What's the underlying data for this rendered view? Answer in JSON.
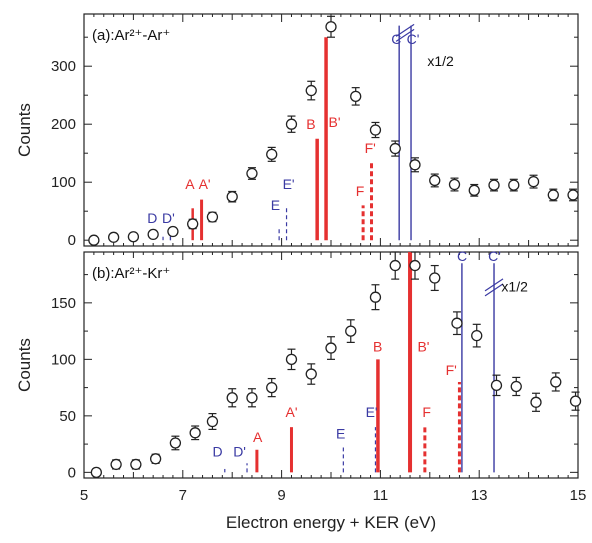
{
  "chart_data": [
    {
      "type": "scatter",
      "panel": "a",
      "title": "(a):Ar²⁺-Ar⁺",
      "xlabel": "Electron energy + KER (eV)",
      "ylabel": "Counts",
      "xlim": [
        5,
        15
      ],
      "ylim": [
        -10,
        390
      ],
      "xticks": [
        5,
        7,
        9,
        11,
        13,
        15
      ],
      "yticks": [
        0,
        100,
        200,
        300
      ],
      "break_label": "x1/2",
      "series": [
        {
          "kind": "points-with-errorbars",
          "x": [
            5.2,
            5.6,
            6.0,
            6.4,
            6.8,
            7.2,
            7.6,
            8.0,
            8.4,
            8.8,
            9.2,
            9.6,
            10.0,
            10.5,
            10.9,
            11.3,
            11.7,
            12.1,
            12.5,
            12.9,
            13.3,
            13.7,
            14.1,
            14.5,
            14.9
          ],
          "y": [
            0,
            5,
            6,
            10,
            15,
            28,
            40,
            75,
            115,
            148,
            200,
            258,
            368,
            248,
            190,
            158,
            130,
            103,
            96,
            86,
            95,
            95,
            101,
            78,
            78
          ],
          "err": [
            5,
            5,
            5,
            5,
            6,
            8,
            8,
            9,
            10,
            12,
            14,
            16,
            18,
            15,
            13,
            13,
            12,
            11,
            11,
            10,
            10,
            10,
            11,
            10,
            10
          ]
        }
      ],
      "lines": [
        {
          "label": "D",
          "x": [
            6.6,
            6.75
          ],
          "height": 6,
          "color": "#3a3aa3",
          "style": "dashed",
          "width": 1.2
        },
        {
          "label": "D'",
          "x": [
            6.75
          ],
          "height": 8,
          "color": "#3a3aa3",
          "style": "dashed",
          "width": 1.2
        },
        {
          "label": "A",
          "x": [
            7.2
          ],
          "height": 55,
          "color": "#e53030",
          "style": "solid",
          "width": 2.5
        },
        {
          "label": "A'",
          "x": [
            7.38
          ],
          "height": 70,
          "color": "#e53030",
          "style": "solid",
          "width": 3
        },
        {
          "label": "E",
          "x": [
            8.95
          ],
          "height": 20,
          "color": "#3a3aa3",
          "style": "dashed",
          "width": 1.2
        },
        {
          "label": "E'",
          "x": [
            9.1
          ],
          "height": 55,
          "color": "#3a3aa3",
          "style": "dashed",
          "width": 1.2
        },
        {
          "label": "B",
          "x": [
            9.72
          ],
          "height": 175,
          "color": "#e53030",
          "style": "solid",
          "width": 3.5
        },
        {
          "label": "B'",
          "x": [
            9.9
          ],
          "height": 350,
          "color": "#e53030",
          "style": "solid",
          "width": 3.5
        },
        {
          "label": "F",
          "x": [
            10.65
          ],
          "height": 60,
          "color": "#e53030",
          "style": "dashed",
          "width": 3
        },
        {
          "label": "F'",
          "x": [
            10.82
          ],
          "height": 135,
          "color": "#e53030",
          "style": "dashed",
          "width": 3
        },
        {
          "label": "C",
          "x": [
            11.38
          ],
          "height": 370,
          "color": "#3a3aa3",
          "style": "solid",
          "width": 1.4
        },
        {
          "label": "C'",
          "x": [
            11.62
          ],
          "height": 370,
          "color": "#3a3aa3",
          "style": "solid",
          "width": 1.4
        }
      ],
      "line_labels": [
        {
          "text": "A",
          "color": "#e53030",
          "x": 7.05,
          "y": 88
        },
        {
          "text": "A'",
          "color": "#e53030",
          "x": 7.32,
          "y": 88
        },
        {
          "text": "D",
          "color": "#3a3aa3",
          "x": 6.28,
          "y": 30
        },
        {
          "text": "D'",
          "color": "#3a3aa3",
          "x": 6.58,
          "y": 30
        },
        {
          "text": "E",
          "color": "#3a3aa3",
          "x": 8.78,
          "y": 52
        },
        {
          "text": "E'",
          "color": "#3a3aa3",
          "x": 9.02,
          "y": 88
        },
        {
          "text": "B",
          "color": "#e53030",
          "x": 9.5,
          "y": 192
        },
        {
          "text": "B'",
          "color": "#e53030",
          "x": 9.95,
          "y": 195
        },
        {
          "text": "F",
          "color": "#e53030",
          "x": 10.5,
          "y": 76
        },
        {
          "text": "F'",
          "color": "#e53030",
          "x": 10.68,
          "y": 150
        },
        {
          "text": "C",
          "color": "#3a3aa3",
          "x": 11.22,
          "y": 338
        },
        {
          "text": "C'",
          "color": "#3a3aa3",
          "x": 11.53,
          "y": 338
        }
      ]
    },
    {
      "type": "scatter",
      "panel": "b",
      "title": "(b):Ar²⁺-Kr⁺",
      "xlabel": "Electron energy + KER (eV)",
      "ylabel": "Counts",
      "xlim": [
        5,
        15
      ],
      "ylim": [
        -5,
        195
      ],
      "xticks": [
        5,
        7,
        9,
        11,
        13,
        15
      ],
      "yticks": [
        0,
        50,
        100,
        150
      ],
      "break_label": "x1/2",
      "series": [
        {
          "kind": "points-with-errorbars",
          "x": [
            5.25,
            5.65,
            6.05,
            6.45,
            6.85,
            7.25,
            7.6,
            8.0,
            8.4,
            8.8,
            9.2,
            9.6,
            10.0,
            10.4,
            10.9,
            11.3,
            11.7,
            12.1,
            12.55,
            12.95,
            13.35,
            13.75,
            14.15,
            14.55,
            14.95
          ],
          "y": [
            0,
            7,
            7,
            12,
            26,
            35,
            45,
            66,
            66,
            75,
            100,
            87,
            110,
            125,
            155,
            183,
            183,
            172,
            132,
            121,
            77,
            76,
            62,
            80,
            63
          ],
          "err": [
            3,
            4,
            4,
            4,
            6,
            6,
            7,
            8,
            8,
            8,
            9,
            9,
            10,
            10,
            11,
            12,
            12,
            11,
            10,
            10,
            9,
            8,
            8,
            8,
            8
          ]
        }
      ],
      "lines": [
        {
          "label": "D",
          "x": [
            7.85
          ],
          "height": 3,
          "color": "#3a3aa3",
          "style": "dashed",
          "width": 1.2
        },
        {
          "label": "D'",
          "x": [
            8.3
          ],
          "height": 8,
          "color": "#3a3aa3",
          "style": "dashed",
          "width": 1.2
        },
        {
          "label": "A",
          "x": [
            8.5
          ],
          "height": 20,
          "color": "#e53030",
          "style": "solid",
          "width": 3
        },
        {
          "label": "A'",
          "x": [
            9.2
          ],
          "height": 40,
          "color": "#e53030",
          "style": "solid",
          "width": 3
        },
        {
          "label": "E",
          "x": [
            10.25
          ],
          "height": 22,
          "color": "#3a3aa3",
          "style": "dashed",
          "width": 1.2
        },
        {
          "label": "E'",
          "x": [
            10.9
          ],
          "height": 40,
          "color": "#3a3aa3",
          "style": "dashed",
          "width": 1.2
        },
        {
          "label": "B",
          "x": [
            10.95
          ],
          "height": 100,
          "color": "#e53030",
          "style": "solid",
          "width": 3.5
        },
        {
          "label": "B'",
          "x": [
            11.6
          ],
          "height": 195,
          "color": "#e53030",
          "style": "solid",
          "width": 4
        },
        {
          "label": "F",
          "x": [
            11.9
          ],
          "height": 40,
          "color": "#e53030",
          "style": "dashed",
          "width": 3
        },
        {
          "label": "F'",
          "x": [
            12.6
          ],
          "height": 80,
          "color": "#e53030",
          "style": "dashed",
          "width": 3
        },
        {
          "label": "C",
          "x": [
            12.65
          ],
          "height": 185,
          "color": "#3a3aa3",
          "style": "solid",
          "width": 1.4
        },
        {
          "label": "C'",
          "x": [
            13.3
          ],
          "height": 185,
          "color": "#3a3aa3",
          "style": "solid",
          "width": 1.4
        }
      ],
      "line_labels": [
        {
          "text": "D",
          "color": "#3a3aa3",
          "x": 7.6,
          "y": 14
        },
        {
          "text": "D'",
          "color": "#3a3aa3",
          "x": 8.02,
          "y": 14
        },
        {
          "text": "A",
          "color": "#e53030",
          "x": 8.42,
          "y": 27
        },
        {
          "text": "A'",
          "color": "#e53030",
          "x": 9.08,
          "y": 49
        },
        {
          "text": "E",
          "color": "#3a3aa3",
          "x": 10.1,
          "y": 30
        },
        {
          "text": "E'",
          "color": "#3a3aa3",
          "x": 10.7,
          "y": 49
        },
        {
          "text": "B",
          "color": "#e53030",
          "x": 10.85,
          "y": 107
        },
        {
          "text": "B'",
          "color": "#e53030",
          "x": 11.75,
          "y": 107
        },
        {
          "text": "F",
          "color": "#e53030",
          "x": 11.85,
          "y": 49
        },
        {
          "text": "F'",
          "color": "#e53030",
          "x": 12.32,
          "y": 86
        },
        {
          "text": "C",
          "color": "#3a3aa3",
          "x": 12.55,
          "y": 187
        },
        {
          "text": "C'",
          "color": "#3a3aa3",
          "x": 13.18,
          "y": 187
        }
      ]
    }
  ]
}
